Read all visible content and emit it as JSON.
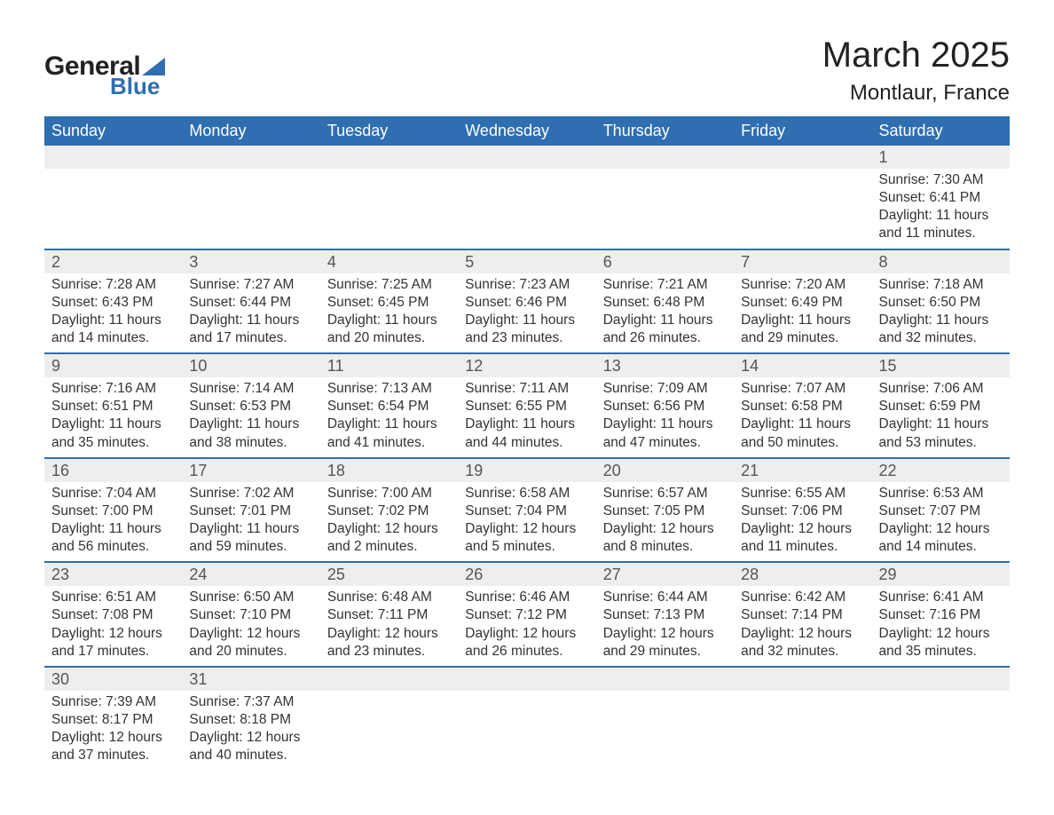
{
  "logo": {
    "text_general": "General",
    "text_blue": "Blue",
    "triangle_color": "#2f6eb0"
  },
  "title": "March 2025",
  "location": "Montlaur, France",
  "header_bg": "#2f6eb0",
  "header_fg": "#ffffff",
  "daynum_bg": "#eeeeee",
  "daynum_fg": "#555555",
  "detail_fg": "#333333",
  "row_border_color": "#2f6eb0",
  "font_family": "Arial",
  "title_fontsize": 40,
  "location_fontsize": 24,
  "header_fontsize": 18,
  "daynum_fontsize": 18,
  "detail_fontsize": 15.5,
  "weekdays": [
    "Sunday",
    "Monday",
    "Tuesday",
    "Wednesday",
    "Thursday",
    "Friday",
    "Saturday"
  ],
  "weeks": [
    [
      null,
      null,
      null,
      null,
      null,
      null,
      {
        "n": "1",
        "sunrise": "Sunrise: 7:30 AM",
        "sunset": "Sunset: 6:41 PM",
        "d1": "Daylight: 11 hours",
        "d2": "and 11 minutes."
      }
    ],
    [
      {
        "n": "2",
        "sunrise": "Sunrise: 7:28 AM",
        "sunset": "Sunset: 6:43 PM",
        "d1": "Daylight: 11 hours",
        "d2": "and 14 minutes."
      },
      {
        "n": "3",
        "sunrise": "Sunrise: 7:27 AM",
        "sunset": "Sunset: 6:44 PM",
        "d1": "Daylight: 11 hours",
        "d2": "and 17 minutes."
      },
      {
        "n": "4",
        "sunrise": "Sunrise: 7:25 AM",
        "sunset": "Sunset: 6:45 PM",
        "d1": "Daylight: 11 hours",
        "d2": "and 20 minutes."
      },
      {
        "n": "5",
        "sunrise": "Sunrise: 7:23 AM",
        "sunset": "Sunset: 6:46 PM",
        "d1": "Daylight: 11 hours",
        "d2": "and 23 minutes."
      },
      {
        "n": "6",
        "sunrise": "Sunrise: 7:21 AM",
        "sunset": "Sunset: 6:48 PM",
        "d1": "Daylight: 11 hours",
        "d2": "and 26 minutes."
      },
      {
        "n": "7",
        "sunrise": "Sunrise: 7:20 AM",
        "sunset": "Sunset: 6:49 PM",
        "d1": "Daylight: 11 hours",
        "d2": "and 29 minutes."
      },
      {
        "n": "8",
        "sunrise": "Sunrise: 7:18 AM",
        "sunset": "Sunset: 6:50 PM",
        "d1": "Daylight: 11 hours",
        "d2": "and 32 minutes."
      }
    ],
    [
      {
        "n": "9",
        "sunrise": "Sunrise: 7:16 AM",
        "sunset": "Sunset: 6:51 PM",
        "d1": "Daylight: 11 hours",
        "d2": "and 35 minutes."
      },
      {
        "n": "10",
        "sunrise": "Sunrise: 7:14 AM",
        "sunset": "Sunset: 6:53 PM",
        "d1": "Daylight: 11 hours",
        "d2": "and 38 minutes."
      },
      {
        "n": "11",
        "sunrise": "Sunrise: 7:13 AM",
        "sunset": "Sunset: 6:54 PM",
        "d1": "Daylight: 11 hours",
        "d2": "and 41 minutes."
      },
      {
        "n": "12",
        "sunrise": "Sunrise: 7:11 AM",
        "sunset": "Sunset: 6:55 PM",
        "d1": "Daylight: 11 hours",
        "d2": "and 44 minutes."
      },
      {
        "n": "13",
        "sunrise": "Sunrise: 7:09 AM",
        "sunset": "Sunset: 6:56 PM",
        "d1": "Daylight: 11 hours",
        "d2": "and 47 minutes."
      },
      {
        "n": "14",
        "sunrise": "Sunrise: 7:07 AM",
        "sunset": "Sunset: 6:58 PM",
        "d1": "Daylight: 11 hours",
        "d2": "and 50 minutes."
      },
      {
        "n": "15",
        "sunrise": "Sunrise: 7:06 AM",
        "sunset": "Sunset: 6:59 PM",
        "d1": "Daylight: 11 hours",
        "d2": "and 53 minutes."
      }
    ],
    [
      {
        "n": "16",
        "sunrise": "Sunrise: 7:04 AM",
        "sunset": "Sunset: 7:00 PM",
        "d1": "Daylight: 11 hours",
        "d2": "and 56 minutes."
      },
      {
        "n": "17",
        "sunrise": "Sunrise: 7:02 AM",
        "sunset": "Sunset: 7:01 PM",
        "d1": "Daylight: 11 hours",
        "d2": "and 59 minutes."
      },
      {
        "n": "18",
        "sunrise": "Sunrise: 7:00 AM",
        "sunset": "Sunset: 7:02 PM",
        "d1": "Daylight: 12 hours",
        "d2": "and 2 minutes."
      },
      {
        "n": "19",
        "sunrise": "Sunrise: 6:58 AM",
        "sunset": "Sunset: 7:04 PM",
        "d1": "Daylight: 12 hours",
        "d2": "and 5 minutes."
      },
      {
        "n": "20",
        "sunrise": "Sunrise: 6:57 AM",
        "sunset": "Sunset: 7:05 PM",
        "d1": "Daylight: 12 hours",
        "d2": "and 8 minutes."
      },
      {
        "n": "21",
        "sunrise": "Sunrise: 6:55 AM",
        "sunset": "Sunset: 7:06 PM",
        "d1": "Daylight: 12 hours",
        "d2": "and 11 minutes."
      },
      {
        "n": "22",
        "sunrise": "Sunrise: 6:53 AM",
        "sunset": "Sunset: 7:07 PM",
        "d1": "Daylight: 12 hours",
        "d2": "and 14 minutes."
      }
    ],
    [
      {
        "n": "23",
        "sunrise": "Sunrise: 6:51 AM",
        "sunset": "Sunset: 7:08 PM",
        "d1": "Daylight: 12 hours",
        "d2": "and 17 minutes."
      },
      {
        "n": "24",
        "sunrise": "Sunrise: 6:50 AM",
        "sunset": "Sunset: 7:10 PM",
        "d1": "Daylight: 12 hours",
        "d2": "and 20 minutes."
      },
      {
        "n": "25",
        "sunrise": "Sunrise: 6:48 AM",
        "sunset": "Sunset: 7:11 PM",
        "d1": "Daylight: 12 hours",
        "d2": "and 23 minutes."
      },
      {
        "n": "26",
        "sunrise": "Sunrise: 6:46 AM",
        "sunset": "Sunset: 7:12 PM",
        "d1": "Daylight: 12 hours",
        "d2": "and 26 minutes."
      },
      {
        "n": "27",
        "sunrise": "Sunrise: 6:44 AM",
        "sunset": "Sunset: 7:13 PM",
        "d1": "Daylight: 12 hours",
        "d2": "and 29 minutes."
      },
      {
        "n": "28",
        "sunrise": "Sunrise: 6:42 AM",
        "sunset": "Sunset: 7:14 PM",
        "d1": "Daylight: 12 hours",
        "d2": "and 32 minutes."
      },
      {
        "n": "29",
        "sunrise": "Sunrise: 6:41 AM",
        "sunset": "Sunset: 7:16 PM",
        "d1": "Daylight: 12 hours",
        "d2": "and 35 minutes."
      }
    ],
    [
      {
        "n": "30",
        "sunrise": "Sunrise: 7:39 AM",
        "sunset": "Sunset: 8:17 PM",
        "d1": "Daylight: 12 hours",
        "d2": "and 37 minutes."
      },
      {
        "n": "31",
        "sunrise": "Sunrise: 7:37 AM",
        "sunset": "Sunset: 8:18 PM",
        "d1": "Daylight: 12 hours",
        "d2": "and 40 minutes."
      },
      null,
      null,
      null,
      null,
      null
    ]
  ]
}
